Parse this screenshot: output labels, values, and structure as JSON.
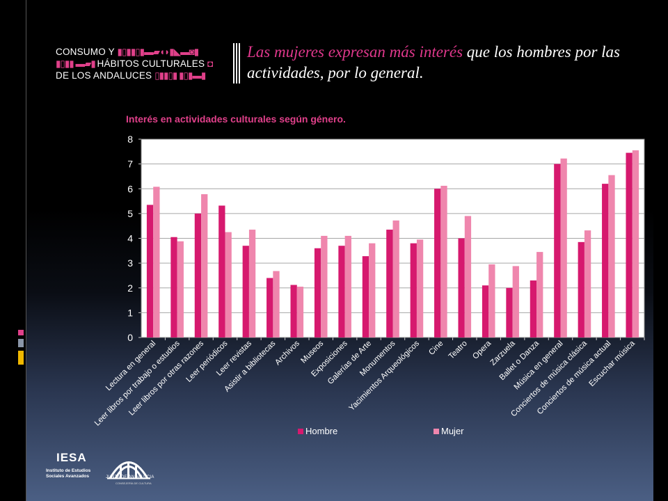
{
  "header": {
    "logo_lines": [
      "CONSUMO Y",
      "HÁBITOS CULTURALES",
      "DE LOS ANDALUCES"
    ],
    "headline_highlight": "Las mujeres expresan más interés",
    "headline_rest": " que los hombres por las actividades, por lo general."
  },
  "colors": {
    "hombre": "#d6196e",
    "mujer": "#ef86ad",
    "accent": "#e0408a",
    "background": "#000000"
  },
  "chart_data": {
    "type": "bar",
    "title": "Interés en actividades culturales según género.",
    "ylim": [
      0,
      8
    ],
    "yticks": [
      "0",
      "1",
      "2",
      "3",
      "4",
      "5",
      "6",
      "7",
      "8"
    ],
    "grid": true,
    "legend_position": "bottom",
    "categories": [
      "Lectura en general",
      "Leer libros por trabajo o estudios",
      "Leer libros por otras razones",
      "Leer periódicos",
      "Leer revistas",
      "Asistir a bibliotecas",
      "Archivos",
      "Museos",
      "Exposiciones",
      "Galerías de Arte",
      "Monumentos",
      "Yacimientos Arqueológicos",
      "Cine",
      "Teatro",
      "Opera",
      "Zarzuela",
      "Ballet o Danza",
      "Música en general",
      "Conciertos de música clásica",
      "Conciertos de música actual",
      "Escuchar música"
    ],
    "series": [
      {
        "name": "Hombre",
        "values": [
          5.35,
          4.05,
          5.0,
          5.32,
          3.7,
          2.4,
          2.12,
          3.6,
          3.7,
          3.28,
          4.35,
          3.8,
          6.0,
          4.0,
          2.1,
          2.0,
          2.3,
          7.0,
          3.85,
          6.2,
          7.45
        ]
      },
      {
        "name": "Mujer",
        "values": [
          6.08,
          3.88,
          5.78,
          4.25,
          4.35,
          2.68,
          2.05,
          4.1,
          4.1,
          3.8,
          4.72,
          3.95,
          6.12,
          4.9,
          2.95,
          2.88,
          3.45,
          7.22,
          4.32,
          6.55,
          7.55
        ]
      }
    ]
  },
  "footer": {
    "iesa_mark": "IESA",
    "iesa_sub_1": "Instituto de Estudios",
    "iesa_sub_2": "Sociales Avanzados",
    "junta_name": "JUNTA DE ANDALUCIA",
    "junta_sub": "CONSEJERÍA DE CULTURA"
  }
}
